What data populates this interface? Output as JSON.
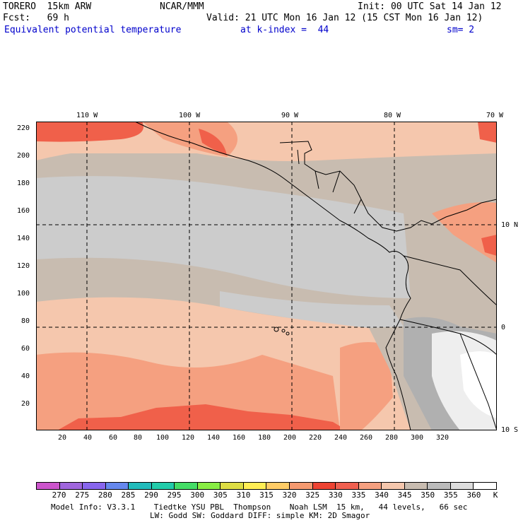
{
  "header": {
    "model": "TORERO  15km ARW",
    "org": "NCAR/MMM",
    "init": "Init: 00 UTC Sat 14 Jan 12",
    "fcst": "Fcst:   69 h",
    "valid": "Valid: 21 UTC Mon 16 Jan 12 (15 CST Mon 16 Jan 12)",
    "field": "Equivalent potential temperature",
    "level": "at k-index =  44",
    "smooth": "sm= 2"
  },
  "map": {
    "top_lon_labels": [
      "110 W",
      "100 W",
      "90 W",
      "80 W",
      "70 W"
    ],
    "right_lat_labels": [
      "10 N",
      "0",
      "10 S"
    ],
    "left_y_ticks": [
      "220",
      "200",
      "180",
      "160",
      "140",
      "120",
      "100",
      "80",
      "60",
      "40",
      "20"
    ],
    "bottom_x_ticks": [
      "20",
      "40",
      "60",
      "80",
      "100",
      "120",
      "140",
      "160",
      "180",
      "200",
      "220",
      "240",
      "260",
      "280",
      "300",
      "320"
    ],
    "colors": {
      "ocean_gray": "#cccccc",
      "taupe": "#c8bcb0",
      "peach": "#f5c7ad",
      "salmon": "#f5a080",
      "red_orange": "#f0604a",
      "light_land": "#eeeeee",
      "white": "#ffffff",
      "mid_gray": "#b0b0b0"
    }
  },
  "colorbar": {
    "colors": [
      "#cc55cc",
      "#a066dd",
      "#8866ee",
      "#6688ee",
      "#22bbbb",
      "#22ccaa",
      "#44dd66",
      "#88ee44",
      "#dddd44",
      "#ffee55",
      "#ffcc66",
      "#f59a70",
      "#ee4433",
      "#f06050",
      "#f5a080",
      "#f5c7ad",
      "#c8bcb0",
      "#bbbbbb",
      "#dddddd",
      "#ffffff"
    ],
    "labels": [
      "270",
      "275",
      "280",
      "285",
      "290",
      "295",
      "300",
      "305",
      "310",
      "315",
      "320",
      "325",
      "330",
      "335",
      "340",
      "345",
      "350",
      "355",
      "360"
    ],
    "unit": "K"
  },
  "footer": {
    "line1": "Model Info: V3.3.1    Tiedtke YSU PBL  Thompson    Noah LSM  15 km,   44 levels,   66 sec",
    "line2": "LW: Godd SW: Goddard DIFF: simple KM: 2D Smagor"
  }
}
